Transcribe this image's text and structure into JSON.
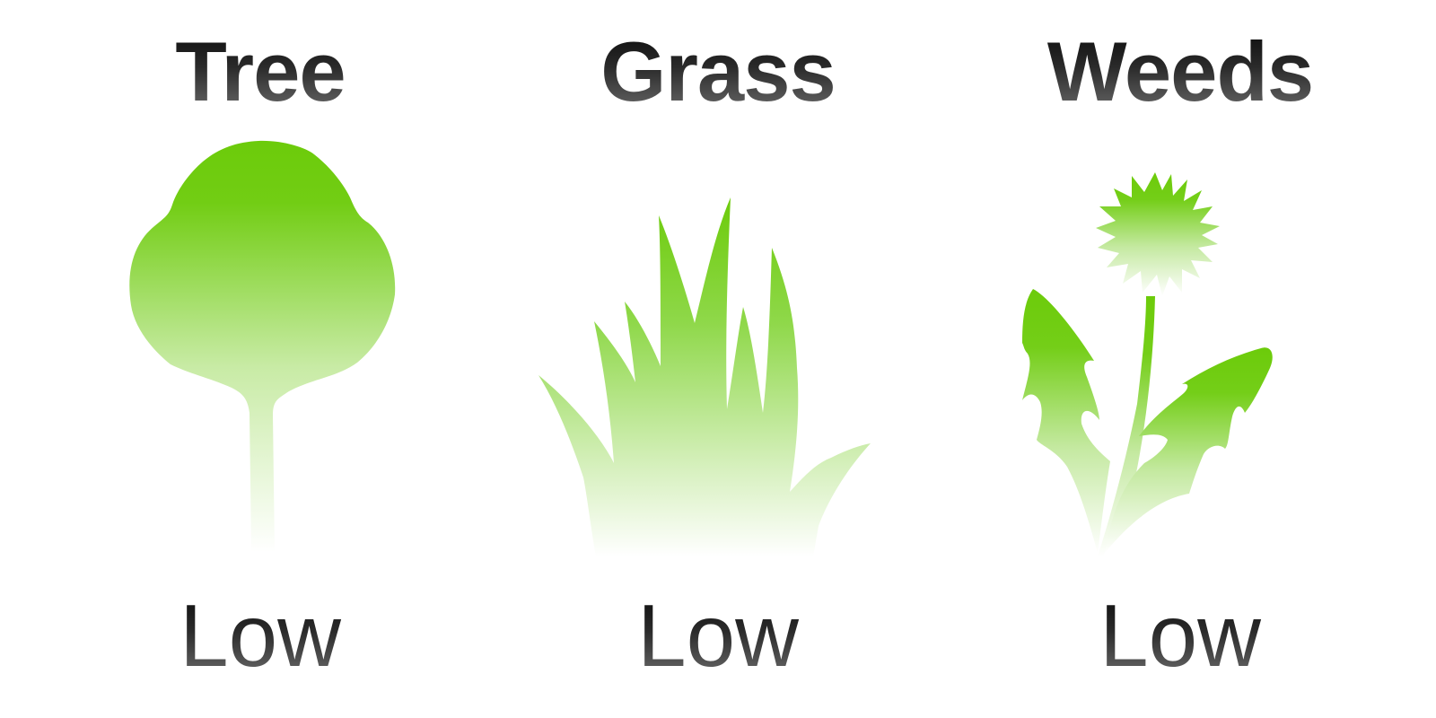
{
  "colors": {
    "plant_green": "#6ccb0a",
    "plant_fade": "#ffffff",
    "text_dark": "#0a0a0a"
  },
  "items": [
    {
      "title": "Tree",
      "level": "Low",
      "icon": "tree-icon"
    },
    {
      "title": "Grass",
      "level": "Low",
      "icon": "grass-icon"
    },
    {
      "title": "Weeds",
      "level": "Low",
      "icon": "dandelion-icon"
    }
  ]
}
